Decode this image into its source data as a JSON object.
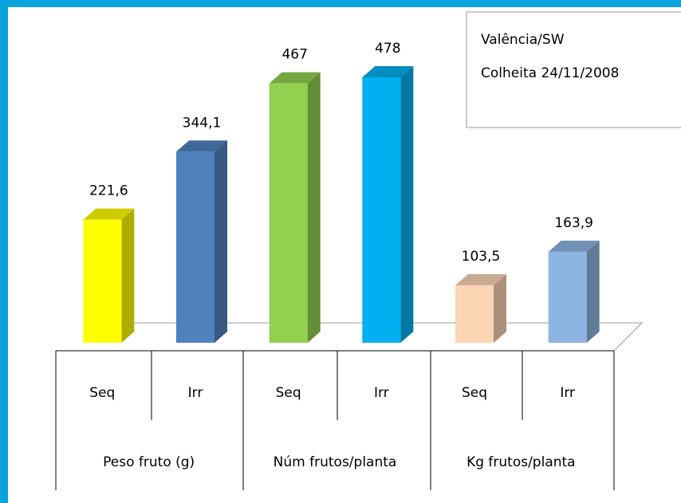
{
  "chart_data": {
    "type": "bar",
    "categories": [
      "Seq",
      "Irr",
      "Seq",
      "Irr",
      "Seq",
      "Irr"
    ],
    "groups": [
      "Peso fruto (g)",
      "Núm frutos/planta",
      "Kg frutos/planta"
    ],
    "values": [
      221.6,
      344.1,
      467,
      478,
      103.5,
      163.9
    ],
    "value_labels": [
      "221,6",
      "344,1",
      "467",
      "478",
      "103,5",
      "163,9"
    ],
    "colors": [
      "#ffff00",
      "#4f81bd",
      "#92d050",
      "#00b0f0",
      "#fcd5b5",
      "#8db4e2"
    ],
    "annotations": [
      "Valência/SW",
      "Colheita 24/11/2008"
    ]
  }
}
